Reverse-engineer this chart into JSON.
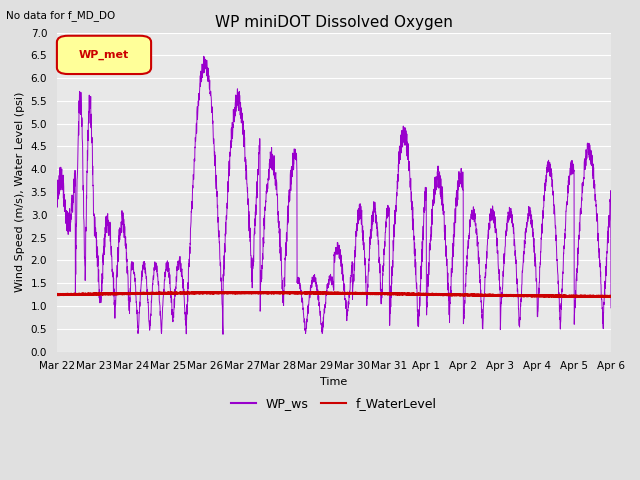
{
  "title": "WP miniDOT Dissolved Oxygen",
  "subtitle": "No data for f_MD_DO",
  "xlabel": "Time",
  "ylabel": "Wind Speed (m/s), Water Level (psi)",
  "ylim": [
    0.0,
    7.0
  ],
  "yticks": [
    0.0,
    0.5,
    1.0,
    1.5,
    2.0,
    2.5,
    3.0,
    3.5,
    4.0,
    4.5,
    5.0,
    5.5,
    6.0,
    6.5,
    7.0
  ],
  "x_tick_labels": [
    "Mar 22",
    "Mar 23",
    "Mar 24",
    "Mar 25",
    "Mar 26",
    "Mar 27",
    "Mar 28",
    "Mar 29",
    "Mar 30",
    "Mar 31",
    "Apr 1",
    "Apr 2",
    "Apr 3",
    "Apr 4",
    "Apr 5",
    "Apr 6"
  ],
  "wp_ws_color": "#9900cc",
  "f_wl_color": "#cc0000",
  "bg_color": "#e0e0e0",
  "plot_bg_color": "#e8e8e8",
  "legend_box_color": "#ffff99",
  "legend_box_edge": "#cc0000",
  "legend_box_text_color": "#cc0000",
  "grid_color": "#ffffff",
  "title_fontsize": 11,
  "label_fontsize": 8,
  "tick_fontsize": 7.5
}
